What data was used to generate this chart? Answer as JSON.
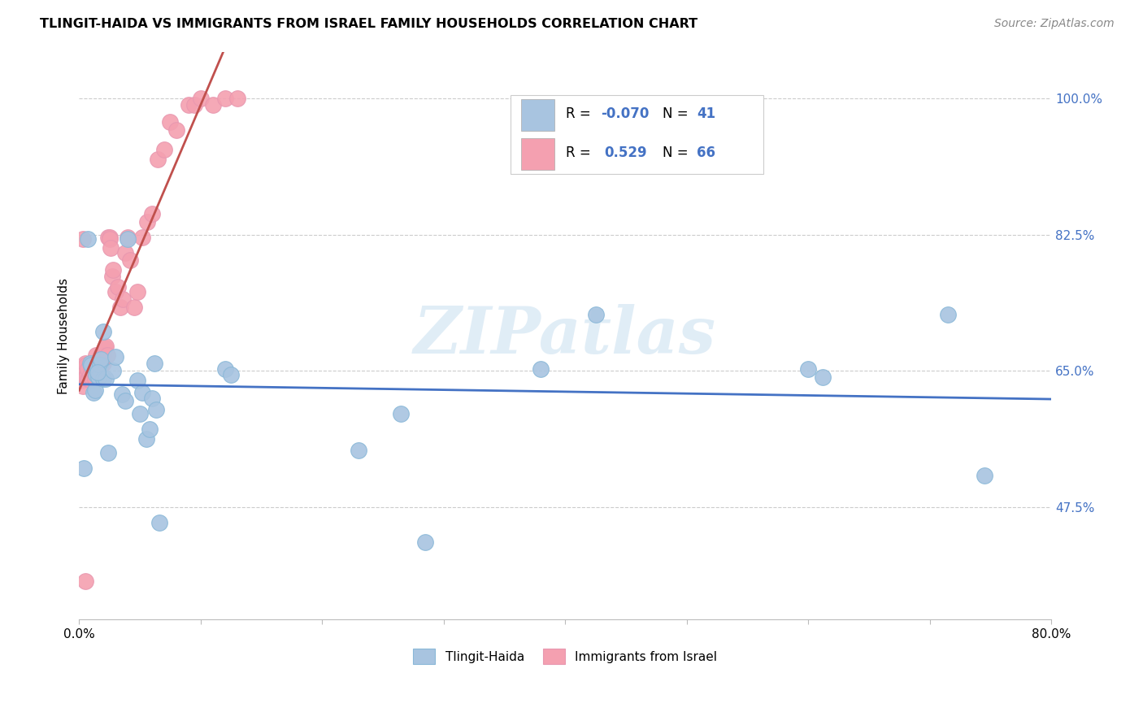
{
  "title": "TLINGIT-HAIDA VS IMMIGRANTS FROM ISRAEL FAMILY HOUSEHOLDS CORRELATION CHART",
  "source": "Source: ZipAtlas.com",
  "ylabel": "Family Households",
  "xlim": [
    0.0,
    0.8
  ],
  "ylim": [
    0.33,
    1.06
  ],
  "tlingit_R": "-0.070",
  "tlingit_N": "41",
  "israel_R": "0.529",
  "israel_N": "66",
  "watermark": "ZIPatlas",
  "trendline_blue_color": "#4472c4",
  "trendline_pink_color": "#c0504d",
  "dot_blue_color": "#a8c4e0",
  "dot_pink_color": "#f4a0b0",
  "dot_blue_edge": "#8ab8d8",
  "dot_pink_edge": "#e898b0",
  "y_ticks": [
    0.475,
    0.65,
    0.825,
    1.0
  ],
  "y_tick_labels": [
    "47.5%",
    "65.0%",
    "82.5%",
    "100.0%"
  ],
  "x_ticks": [
    0.0,
    0.1,
    0.2,
    0.3,
    0.4,
    0.5,
    0.6,
    0.7,
    0.8
  ],
  "tlingit_x": [
    0.004,
    0.007,
    0.009,
    0.01,
    0.012,
    0.013,
    0.014,
    0.015,
    0.016,
    0.017,
    0.018,
    0.02,
    0.022,
    0.024,
    0.028,
    0.03,
    0.035,
    0.038,
    0.04,
    0.048,
    0.052,
    0.055,
    0.058,
    0.06,
    0.063,
    0.066,
    0.12,
    0.125,
    0.23,
    0.265,
    0.285,
    0.38,
    0.425,
    0.6,
    0.612,
    0.715,
    0.745,
    0.015,
    0.02,
    0.05,
    0.062
  ],
  "tlingit_y": [
    0.525,
    0.82,
    0.66,
    0.658,
    0.622,
    0.625,
    0.645,
    0.655,
    0.642,
    0.658,
    0.665,
    0.64,
    0.64,
    0.545,
    0.65,
    0.668,
    0.62,
    0.612,
    0.82,
    0.638,
    0.622,
    0.562,
    0.575,
    0.615,
    0.6,
    0.455,
    0.652,
    0.645,
    0.548,
    0.595,
    0.43,
    0.652,
    0.722,
    0.652,
    0.642,
    0.722,
    0.515,
    0.648,
    0.7,
    0.595,
    0.66
  ],
  "israel_x": [
    0.001,
    0.002,
    0.003,
    0.003,
    0.004,
    0.005,
    0.005,
    0.006,
    0.006,
    0.007,
    0.007,
    0.008,
    0.009,
    0.01,
    0.01,
    0.011,
    0.011,
    0.012,
    0.012,
    0.013,
    0.013,
    0.014,
    0.014,
    0.015,
    0.015,
    0.016,
    0.016,
    0.017,
    0.018,
    0.018,
    0.019,
    0.02,
    0.02,
    0.021,
    0.022,
    0.023,
    0.024,
    0.025,
    0.025,
    0.026,
    0.027,
    0.028,
    0.03,
    0.032,
    0.034,
    0.036,
    0.038,
    0.04,
    0.042,
    0.045,
    0.048,
    0.052,
    0.056,
    0.06,
    0.065,
    0.07,
    0.075,
    0.08,
    0.09,
    0.095,
    0.1,
    0.11,
    0.12,
    0.13,
    0.003,
    0.005
  ],
  "israel_y": [
    0.64,
    0.638,
    0.63,
    0.65,
    0.648,
    0.642,
    0.66,
    0.642,
    0.658,
    0.64,
    0.652,
    0.64,
    0.645,
    0.638,
    0.655,
    0.64,
    0.65,
    0.65,
    0.66,
    0.64,
    0.652,
    0.66,
    0.67,
    0.648,
    0.66,
    0.66,
    0.655,
    0.665,
    0.658,
    0.67,
    0.66,
    0.66,
    0.67,
    0.68,
    0.682,
    0.67,
    0.822,
    0.822,
    0.82,
    0.808,
    0.772,
    0.78,
    0.752,
    0.758,
    0.732,
    0.742,
    0.802,
    0.822,
    0.792,
    0.732,
    0.752,
    0.822,
    0.842,
    0.852,
    0.922,
    0.935,
    0.97,
    0.96,
    0.992,
    0.992,
    1.0,
    0.992,
    1.0,
    1.0,
    0.82,
    0.38
  ]
}
